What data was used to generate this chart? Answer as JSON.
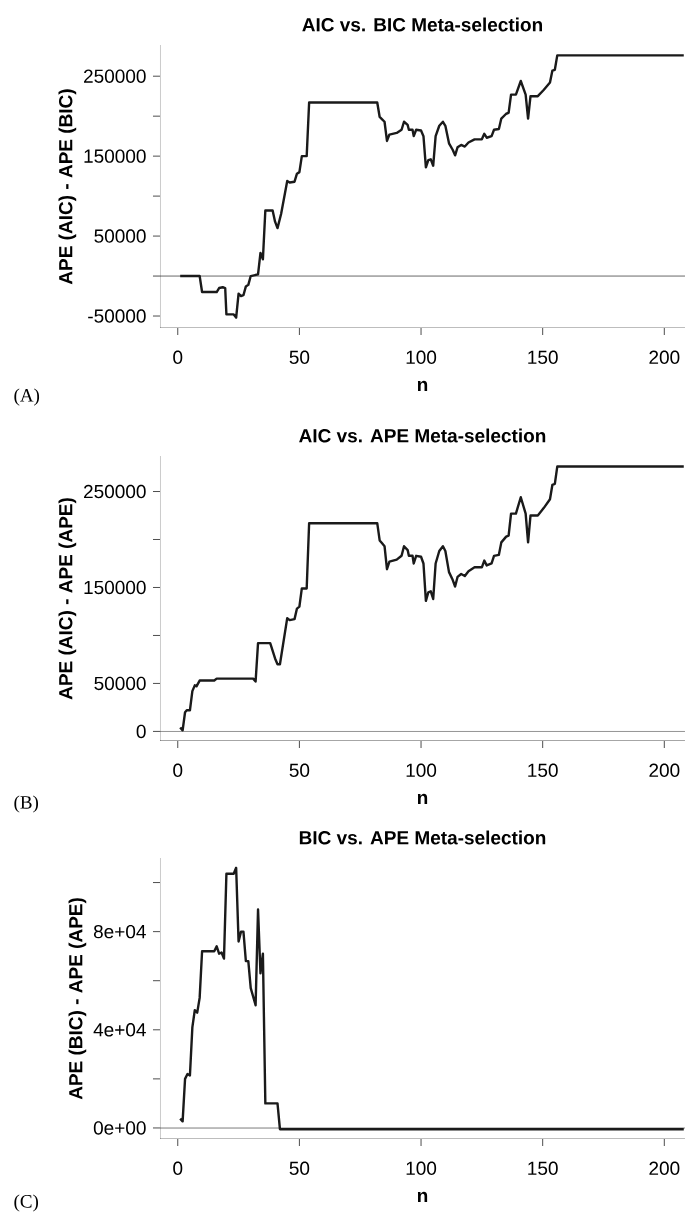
{
  "chart_data": [
    {
      "type": "line",
      "title": "AIC vs. BIC Meta-selection",
      "xlabel": "n",
      "ylabel": "APE (AIC) - APE (BIC)",
      "annotations": [
        "(A)"
      ],
      "x": [
        1,
        9,
        10,
        16,
        17,
        18.5,
        19.5,
        20,
        23,
        24,
        25,
        26,
        27,
        28,
        29,
        30,
        33,
        34,
        35,
        36,
        39,
        40,
        41,
        42.5,
        45,
        46,
        48,
        49,
        50,
        51,
        53,
        54,
        82,
        83,
        84,
        85,
        86,
        87,
        90,
        92,
        93,
        94.5,
        95,
        96.5,
        97,
        98,
        100,
        101,
        102,
        103,
        104,
        105,
        106,
        107.5,
        109,
        110,
        111.5,
        113,
        114,
        115,
        116.5,
        118,
        119.5,
        122,
        125,
        126,
        127,
        129,
        130,
        132,
        133,
        135,
        136,
        137,
        139,
        141,
        143,
        144,
        145,
        148,
        150.5,
        153,
        154,
        155,
        156,
        208
      ],
      "series": [
        {
          "color": "#1a1a1a",
          "values": [
            0,
            0,
            -20000,
            -20000,
            -15000,
            -14000,
            -15000,
            -48000,
            -48000,
            -52000,
            -22000,
            -25000,
            -24000,
            -13000,
            -11000,
            0,
            2000,
            29000,
            21000,
            82000,
            82000,
            68000,
            60000,
            78000,
            119000,
            117000,
            118000,
            128000,
            130000,
            150000,
            150000,
            217000,
            217000,
            199000,
            196000,
            193000,
            169000,
            177000,
            179000,
            183000,
            193000,
            189000,
            183000,
            183000,
            175000,
            183000,
            182000,
            175000,
            136000,
            145000,
            146000,
            138000,
            175000,
            188000,
            193000,
            188000,
            166000,
            158000,
            151000,
            161000,
            164000,
            162000,
            167000,
            171000,
            171000,
            178000,
            173000,
            175000,
            183000,
            184000,
            197000,
            203000,
            204000,
            227000,
            227000,
            244000,
            227000,
            197000,
            225000,
            225000,
            233000,
            242000,
            257000,
            258000,
            276000,
            276000
          ]
        }
      ],
      "xlim": [
        -7.3,
        208.5
      ],
      "xticks": [
        0,
        50,
        100,
        150,
        200
      ],
      "ylim": [
        -65000,
        289000
      ],
      "yticks": [
        -50000,
        {
          "value": 0,
          "label": null
        },
        50000,
        {
          "value": 100000,
          "label": null
        },
        150000,
        {
          "value": 200000,
          "label": null
        },
        250000
      ],
      "ref_lines": [
        {
          "axis": "y",
          "value": 0
        }
      ],
      "line_style": "solid"
    },
    {
      "type": "line",
      "title": "AIC vs. APE Meta-selection",
      "xlabel": "n",
      "ylabel": "APE (AIC) - APE (APE)",
      "annotations": [
        "(B)"
      ],
      "x": [
        1,
        2,
        3,
        3.7,
        5,
        6,
        7,
        7.7,
        9,
        15,
        16,
        31,
        32,
        33,
        38,
        40,
        41,
        42,
        45,
        46,
        48,
        49,
        50,
        51,
        53,
        54,
        82,
        83,
        84,
        85,
        86,
        87,
        90,
        92,
        93,
        94.5,
        95,
        96.5,
        97,
        98,
        100,
        101,
        102,
        103,
        104,
        105,
        106,
        107.5,
        109,
        110,
        111.5,
        113,
        114,
        115,
        116.5,
        118,
        119.5,
        122,
        125,
        126,
        127,
        129,
        130,
        132,
        133,
        135,
        136,
        137,
        139,
        141,
        143,
        144,
        145,
        148,
        150.5,
        153,
        154,
        155,
        156,
        208
      ],
      "series": [
        {
          "color": "#1a1a1a",
          "values": [
            4000,
            1000,
            20000,
            22000,
            22000,
            42000,
            48000,
            47000,
            53000,
            53000,
            55000,
            55000,
            52000,
            92000,
            92000,
            76000,
            70000,
            70000,
            118000,
            116000,
            117000,
            128000,
            130000,
            149000,
            149000,
            217000,
            217000,
            199000,
            196000,
            193000,
            169000,
            177000,
            179000,
            183000,
            193000,
            189000,
            183000,
            183000,
            175000,
            183000,
            182000,
            175000,
            136000,
            145000,
            146000,
            138000,
            175000,
            188000,
            193000,
            188000,
            166000,
            158000,
            151000,
            161000,
            164000,
            162000,
            167000,
            171000,
            171000,
            178000,
            173000,
            175000,
            183000,
            184000,
            197000,
            203000,
            204000,
            227000,
            227000,
            244000,
            227000,
            197000,
            225000,
            225000,
            233000,
            242000,
            257000,
            258000,
            276000,
            276000
          ]
        }
      ],
      "xlim": [
        -7.3,
        208.5
      ],
      "xticks": [
        0,
        50,
        100,
        150,
        200
      ],
      "ylim": [
        -10000,
        287000
      ],
      "yticks": [
        0,
        50000,
        {
          "value": 100000,
          "label": null
        },
        150000,
        {
          "value": 200000,
          "label": null
        },
        250000
      ],
      "ref_lines": [
        {
          "axis": "y",
          "value": 0
        }
      ],
      "line_style": "solid"
    },
    {
      "type": "line",
      "title": "BIC vs. APE Meta-selection",
      "xlabel": "n",
      "ylabel": "APE (BIC) - APE (APE)",
      "annotations": [
        "(C)"
      ],
      "x": [
        1,
        2,
        3,
        4,
        5,
        6,
        7,
        8,
        9,
        10,
        15,
        16,
        17,
        18,
        19,
        20,
        23,
        24,
        25,
        26,
        27,
        28,
        29,
        30,
        32,
        33,
        34,
        35,
        36,
        41,
        42,
        208
      ],
      "series": [
        {
          "color": "#1a1a1a",
          "values": [
            3800,
            2700,
            20000,
            22000,
            21400,
            41000,
            48000,
            47000,
            53000,
            72000,
            72000,
            74000,
            71000,
            71500,
            69000,
            103600,
            103600,
            106000,
            76000,
            80000,
            80000,
            68000,
            68000,
            57000,
            50000,
            89000,
            63000,
            71000,
            10000,
            10000,
            -500,
            -500
          ]
        }
      ],
      "xlim": [
        -7.3,
        208.5
      ],
      "xticks": [
        0,
        50,
        100,
        150,
        200
      ],
      "ylim": [
        -4500,
        110000
      ],
      "yticks": [
        {
          "value": 0,
          "label": "0e+00"
        },
        {
          "value": 20000,
          "label": null
        },
        {
          "value": 40000,
          "label": "4e+04"
        },
        {
          "value": 60000,
          "label": null
        },
        {
          "value": 80000,
          "label": "8e+04"
        },
        {
          "value": 100000,
          "label": null
        }
      ],
      "ref_lines": [
        {
          "axis": "y",
          "value": 0
        }
      ],
      "line_style": "solid"
    }
  ]
}
